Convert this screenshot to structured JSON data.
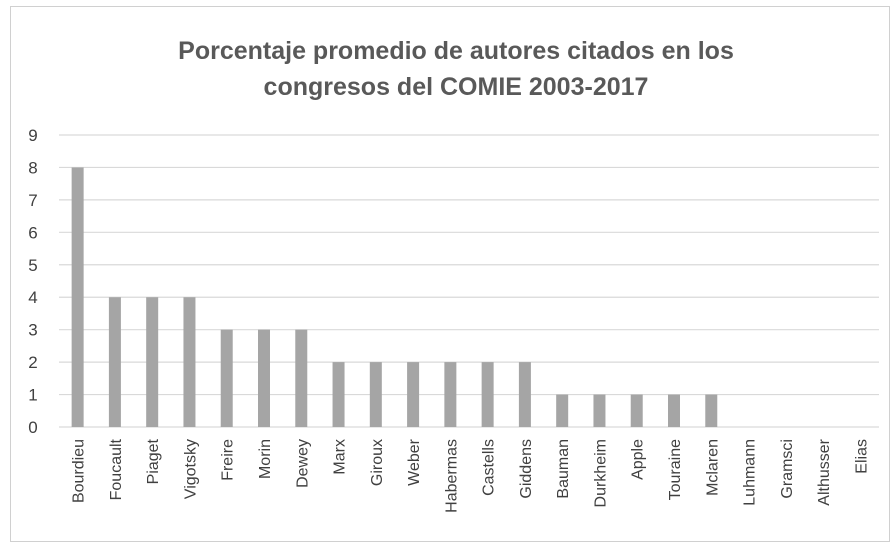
{
  "chart_data": {
    "type": "bar",
    "title_lines": [
      "Porcentaje promedio de autores citados en los",
      "congresos del  COMIE 2003-2017"
    ],
    "categories": [
      "Bourdieu",
      "Foucault",
      "Piaget",
      "Vigotsky",
      "Freire",
      "Morin",
      "Dewey",
      "Marx",
      "Giroux",
      "Weber",
      "Habermas",
      "Castells",
      "Giddens",
      "Bauman",
      "Durkheim",
      "Apple",
      "Touraine",
      "Mclaren",
      "Luhmann",
      "Gramsci",
      "Althusser",
      "Elias"
    ],
    "values": [
      8,
      4,
      4,
      4,
      3,
      3,
      3,
      2,
      2,
      2,
      2,
      2,
      2,
      1,
      1,
      1,
      1,
      1,
      0,
      0,
      0,
      0
    ],
    "ylim": [
      0,
      9
    ],
    "yticks": [
      0,
      1,
      2,
      3,
      4,
      5,
      6,
      7,
      8,
      9
    ],
    "grid": true,
    "legend": "none",
    "colors": {
      "bar": "#a5a5a5",
      "grid": "#d9d9d9",
      "text": "#404040",
      "title": "#595959"
    }
  }
}
